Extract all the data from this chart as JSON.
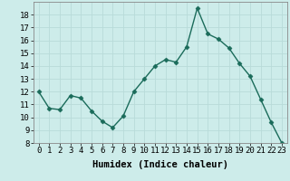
{
  "x": [
    0,
    1,
    2,
    3,
    4,
    5,
    6,
    7,
    8,
    9,
    10,
    11,
    12,
    13,
    14,
    15,
    16,
    17,
    18,
    19,
    20,
    21,
    22,
    23
  ],
  "y": [
    12,
    10.7,
    10.6,
    11.7,
    11.5,
    10.5,
    9.7,
    9.2,
    10.1,
    12.0,
    13.0,
    14.0,
    14.5,
    14.3,
    15.5,
    18.5,
    16.5,
    16.1,
    15.4,
    14.2,
    13.2,
    11.4,
    9.6,
    8.0
  ],
  "line_color": "#1a6b5a",
  "marker": "D",
  "marker_size": 2.5,
  "bg_color": "#cdecea",
  "grid_color": "#b8dbd9",
  "xlabel": "Humidex (Indice chaleur)",
  "ylim": [
    8,
    19
  ],
  "xlim": [
    -0.5,
    23.5
  ],
  "yticks": [
    8,
    9,
    10,
    11,
    12,
    13,
    14,
    15,
    16,
    17,
    18
  ],
  "xticks": [
    0,
    1,
    2,
    3,
    4,
    5,
    6,
    7,
    8,
    9,
    10,
    11,
    12,
    13,
    14,
    15,
    16,
    17,
    18,
    19,
    20,
    21,
    22,
    23
  ],
  "tick_label_fontsize": 6.5,
  "xlabel_fontsize": 7.5,
  "line_width": 1.0
}
